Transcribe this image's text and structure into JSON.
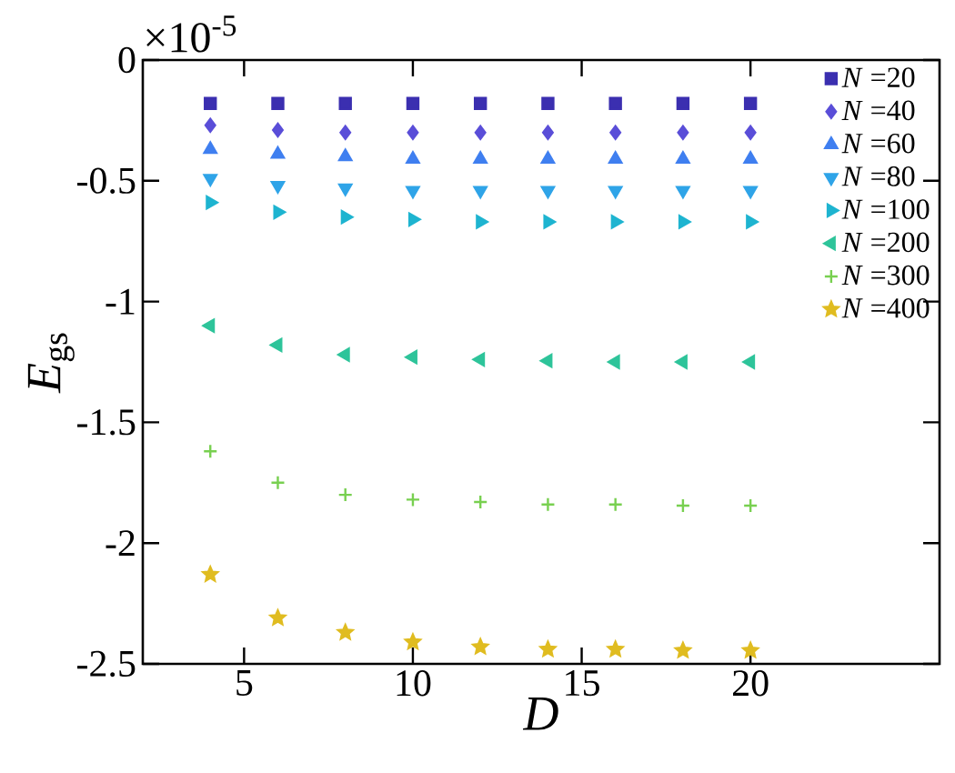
{
  "chart_data": {
    "type": "scatter",
    "xlabel": "D",
    "ylabel": "*E*$_{gs}$",
    "annotations": [
      "×10$^{-5}$"
    ],
    "x": [
      4,
      6,
      8,
      10,
      12,
      14,
      16,
      18,
      20
    ],
    "xlim": [
      2,
      25.6
    ],
    "xticks": [
      5,
      10,
      15,
      20
    ],
    "ylim": [
      -2.5,
      0
    ],
    "yticks": [
      -2.5,
      -2,
      -1.5,
      -1,
      -0.5,
      0
    ],
    "legend": "top right",
    "grid": false,
    "series": [
      {
        "name": "*N* =20",
        "color": "#3b2fb0",
        "marker": "square",
        "values": [
          -0.18,
          -0.18,
          -0.18,
          -0.18,
          -0.18,
          -0.18,
          -0.18,
          -0.18,
          -0.18
        ]
      },
      {
        "name": "*N* =40",
        "color": "#5a4ed8",
        "marker": "diamond",
        "values": [
          -0.27,
          -0.29,
          -0.3,
          -0.3,
          -0.3,
          -0.3,
          -0.3,
          -0.3,
          -0.3
        ]
      },
      {
        "name": "*N* =60",
        "color": "#3f7ff0",
        "marker": "triangle",
        "values": [
          -0.37,
          -0.39,
          -0.4,
          -0.41,
          -0.41,
          -0.41,
          -0.41,
          -0.41,
          -0.41
        ]
      },
      {
        "name": "*N* =80",
        "color": "#2fa4e8",
        "marker": "triangle",
        "values": [
          -0.49,
          -0.52,
          -0.53,
          -0.54,
          -0.54,
          -0.54,
          -0.54,
          -0.54,
          -0.54
        ]
      },
      {
        "name": "*N* =100",
        "color": "#1eb4d0",
        "marker": "triangle",
        "values": [
          -0.59,
          -0.63,
          -0.65,
          -0.66,
          -0.67,
          -0.67,
          -0.67,
          -0.67,
          -0.67
        ]
      },
      {
        "name": "*N* =200",
        "color": "#2ec49a",
        "marker": "triangle",
        "values": [
          -1.1,
          -1.18,
          -1.22,
          -1.23,
          -1.24,
          -1.245,
          -1.25,
          -1.25,
          -1.25
        ]
      },
      {
        "name": "*N* =300",
        "color": "#78d050",
        "marker": "cross",
        "values": [
          -1.62,
          -1.75,
          -1.8,
          -1.82,
          -1.83,
          -1.84,
          -1.84,
          -1.845,
          -1.845
        ]
      },
      {
        "name": "*N* =400",
        "color": "#e0bc20",
        "marker": "star",
        "values": [
          -2.13,
          -2.31,
          -2.37,
          -2.41,
          -2.43,
          -2.44,
          -2.44,
          -2.445,
          -2.445
        ]
      }
    ]
  }
}
